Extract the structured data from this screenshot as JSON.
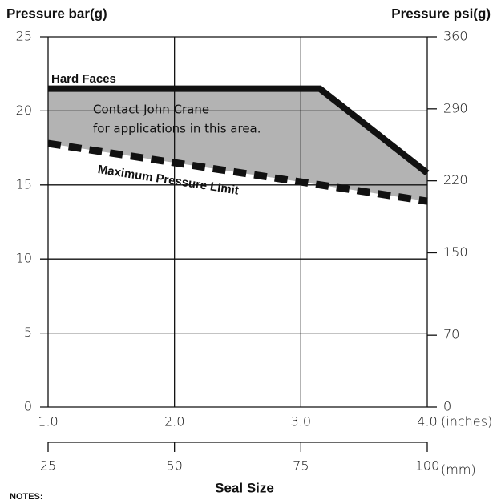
{
  "chart_data": {
    "type": "line",
    "ylabel": "Pressure bar(g)",
    "y2label": "Pressure psi(g)",
    "xlabel": "Seal Size",
    "x_unit": "(inches)",
    "x2_unit": "(mm)",
    "notes": "NOTES:",
    "annotations": [
      "Contact John Crane",
      "for applications in this area."
    ],
    "xlim": [
      1,
      4
    ],
    "xticks": [
      {
        "value": 1,
        "label": "1.0"
      },
      {
        "value": 2,
        "label": "2.0"
      },
      {
        "value": 3,
        "label": "3.0"
      },
      {
        "value": 4,
        "label": "4.0"
      }
    ],
    "x2lim": [
      25,
      100
    ],
    "x2ticks": [
      25,
      50,
      75,
      100
    ],
    "ylim": [
      0,
      25
    ],
    "yticks": [
      0,
      5,
      10,
      15,
      20,
      25
    ],
    "y2lim": [
      0,
      360
    ],
    "y2ticks": [
      0,
      70,
      150,
      220,
      290,
      360
    ],
    "grid": true,
    "area_color": "#b3b3b3",
    "series": [
      {
        "name": "Hard Faces",
        "color": "#111111",
        "linestyle": "solid",
        "x": [
          1,
          3.15,
          4
        ],
        "values": [
          21.5,
          21.5,
          15.8
        ]
      },
      {
        "name": "Maximum Pressure Limit",
        "color": "#111111",
        "linestyle": "dashed",
        "x": [
          1,
          4
        ],
        "values": [
          17.8,
          13.9
        ]
      }
    ]
  }
}
